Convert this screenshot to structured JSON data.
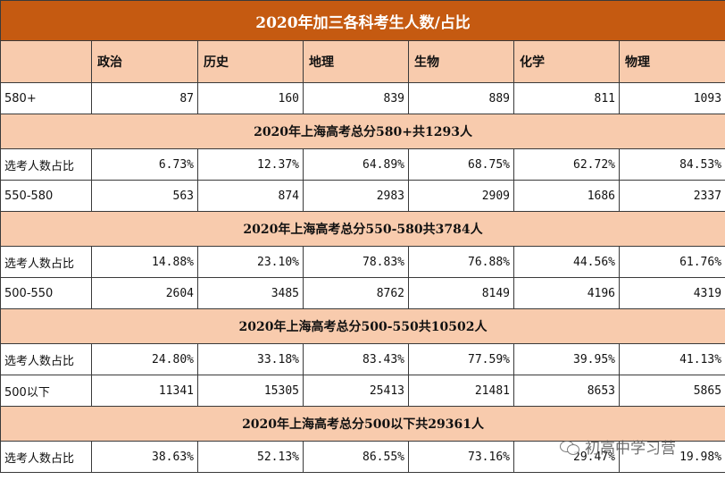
{
  "title": "2020年加三各科考生人数/占比",
  "subjects": [
    "政治",
    "历史",
    "地理",
    "生物",
    "化学",
    "物理"
  ],
  "blocks": [
    {
      "range_label": "580+",
      "counts": [
        "87",
        "160",
        "839",
        "889",
        "811",
        "1093"
      ],
      "summary": "2020年上海高考总分580+共1293人",
      "ratio_label": "选考人数占比",
      "ratios": [
        "6.73%",
        "12.37%",
        "64.89%",
        "68.75%",
        "62.72%",
        "84.53%"
      ]
    },
    {
      "range_label": "550-580",
      "counts": [
        "563",
        "874",
        "2983",
        "2909",
        "1686",
        "2337"
      ],
      "summary": "2020年上海高考总分550-580共3784人",
      "ratio_label": "选考人数占比",
      "ratios": [
        "14.88%",
        "23.10%",
        "78.83%",
        "76.88%",
        "44.56%",
        "61.76%"
      ]
    },
    {
      "range_label": "500-550",
      "counts": [
        "2604",
        "3485",
        "8762",
        "8149",
        "4196",
        "4319"
      ],
      "summary": "2020年上海高考总分500-550共10502人",
      "ratio_label": "选考人数占比",
      "ratios": [
        "24.80%",
        "33.18%",
        "83.43%",
        "77.59%",
        "39.95%",
        "41.13%"
      ]
    },
    {
      "range_label": "500以下",
      "counts": [
        "11341",
        "15305",
        "25413",
        "21481",
        "8653",
        "5865"
      ],
      "summary": "2020年上海高考总分500以下共29361人",
      "ratio_label": "选考人数占比",
      "ratios": [
        "38.63%",
        "52.13%",
        "86.55%",
        "73.16%",
        "29.47%",
        "19.98%"
      ]
    }
  ],
  "watermark": {
    "text": "初高中学习营",
    "icon": "wechat-icon"
  },
  "colors": {
    "title_bg": "#c55a11",
    "header_bg": "#f8cbad",
    "border": "#3a3a3a"
  }
}
